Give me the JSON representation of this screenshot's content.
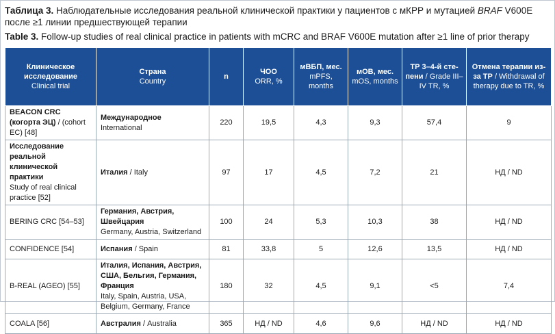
{
  "title": {
    "ru_label": "Таблица 3.",
    "ru_text_1": "Наблюдательные исследования реальной клинической практики у пациентов с мКРР и мутацией",
    "ru_gene": "BRAF",
    "ru_text_2": "V600E после ≥1 линии предшествующей терапии",
    "en_label": "Table 3.",
    "en_text": "Follow-up studies of real clinical practice in patients with mCRC and BRAF V600E mutation after ≥1 line of prior therapy"
  },
  "headers": [
    {
      "ru": "Клиническое исследование",
      "en": "Clinical trial"
    },
    {
      "ru": "Страна",
      "en": "Country"
    },
    {
      "ru": "n",
      "en": ""
    },
    {
      "ru": "ЧОО",
      "en": "ORR, %"
    },
    {
      "ru": "мВБП, мес.",
      "en": "mPFS, months"
    },
    {
      "ru": "мОВ, мес.",
      "en": "mOS, months"
    },
    {
      "ru": "ТР 3–4-й сте-пени",
      "en": "/ Grade III–IV TR, %"
    },
    {
      "ru": "Отмена терапии из-за ТР",
      "en": "/ Withdrawal of therapy due to TR, %"
    }
  ],
  "rows": [
    {
      "trial_ru": "BEACON CRC (когорта ЭЦ)",
      "trial_en": "/ (cohort EC) [48]",
      "country_ru": "Международное",
      "country_en": "International",
      "n": "220",
      "orr": "19,5",
      "mpfs": "4,3",
      "mos": "9,3",
      "tr": "57,4",
      "withdrawal": "9"
    },
    {
      "trial_ru": "Исследование реальной клинической практики",
      "trial_en": "Study of real clinical practice [52]",
      "country_ru": "Италия",
      "country_en": "/ Italy",
      "n": "97",
      "orr": "17",
      "mpfs": "4,5",
      "mos": "7,2",
      "tr": "21",
      "withdrawal": "НД / ND"
    },
    {
      "trial_ru": "",
      "trial_en": "BERING CRC [54–53]",
      "country_ru": "Германия, Австрия, Швейцария",
      "country_en": "Germany, Austria, Switzerland",
      "n": "100",
      "orr": "24",
      "mpfs": "5,3",
      "mos": "10,3",
      "tr": "38",
      "withdrawal": "НД / ND"
    },
    {
      "trial_ru": "",
      "trial_en": "CONFIDENCE [54]",
      "country_ru": "Испания",
      "country_en": "/ Spain",
      "n": "81",
      "orr": "33,8",
      "mpfs": "5",
      "mos": "12,6",
      "tr": "13,5",
      "withdrawal": "НД / ND"
    },
    {
      "trial_ru": "",
      "trial_en": "B-REAL (AGEO) [55]",
      "country_ru": "Италия, Испания, Австрия, США, Бельгия, Германия, Франция",
      "country_en": "Italy, Spain, Austria, USA, Belgium, Germany, France",
      "n": "180",
      "orr": "32",
      "mpfs": "4,5",
      "mos": "9,1",
      "tr": "<5",
      "withdrawal": "7,4"
    },
    {
      "trial_ru": "",
      "trial_en": "COALA [56]",
      "country_ru": "Австралия",
      "country_en": "/ Australia",
      "n": "365",
      "orr": "НД / ND",
      "mpfs": "4,6",
      "mos": "9,6",
      "tr": "НД / ND",
      "withdrawal": "НД / ND"
    }
  ]
}
